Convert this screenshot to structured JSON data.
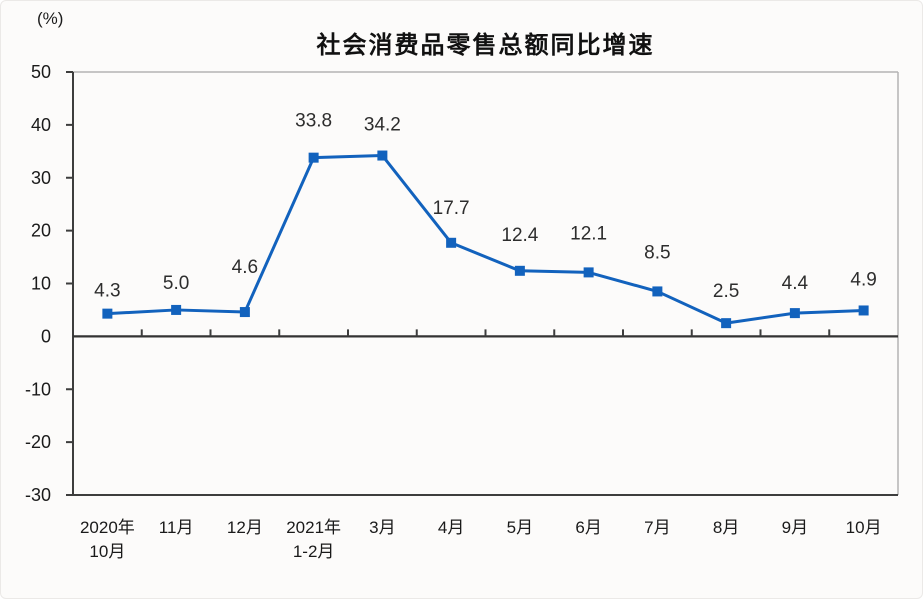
{
  "chart_data": {
    "type": "line",
    "title": "社会消费品零售总额同比增速",
    "unit": "(%)",
    "series_name": "社会消费品零售总额同比增速",
    "categories": [
      "2020年10月",
      "11月",
      "12月",
      "2021年1-2月",
      "3月",
      "4月",
      "5月",
      "6月",
      "7月",
      "8月",
      "9月",
      "10月"
    ],
    "category_lines": [
      [
        "2020年",
        "10月"
      ],
      [
        "11月"
      ],
      [
        "12月"
      ],
      [
        "2021年",
        "1-2月"
      ],
      [
        "3月"
      ],
      [
        "4月"
      ],
      [
        "5月"
      ],
      [
        "6月"
      ],
      [
        "7月"
      ],
      [
        "8月"
      ],
      [
        "9月"
      ],
      [
        "10月"
      ]
    ],
    "values": [
      4.3,
      5.0,
      4.6,
      33.8,
      34.2,
      17.7,
      12.4,
      12.1,
      8.5,
      2.5,
      4.4,
      4.9
    ],
    "labels": [
      "4.3",
      "5.0",
      "4.6",
      "33.8",
      "34.2",
      "17.7",
      "12.4",
      "12.1",
      "8.5",
      "2.5",
      "4.4",
      "4.9"
    ],
    "y_ticks": [
      50,
      40,
      30,
      20,
      10,
      0,
      -10,
      -20,
      -30
    ],
    "ylim": [
      -30,
      50
    ],
    "xlabel": "",
    "ylabel": "(%)",
    "grid": false,
    "legend_position": "none",
    "marker": "square",
    "line_color": "#1262bd",
    "axis_dark_color": "#3d3d3d",
    "frame_light_color": "#b3b3b3",
    "label_color": "#2d2d2d",
    "tick_label_color": "#1a1a1a",
    "label_dy": [
      -17,
      -21,
      -39,
      -31,
      -25,
      -29,
      -30,
      -33,
      -33,
      -26,
      -24,
      -25
    ]
  }
}
